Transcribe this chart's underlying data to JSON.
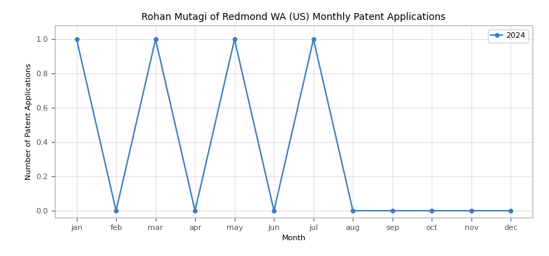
{
  "title": "Rohan Mutagi of Redmond WA (US) Monthly Patent Applications",
  "xlabel": "Month",
  "ylabel": "Number of Patent Applications",
  "months": [
    "jan",
    "feb",
    "mar",
    "apr",
    "may",
    "jun",
    "jul",
    "aug",
    "sep",
    "oct",
    "nov",
    "dec"
  ],
  "values_2024": [
    1,
    0,
    1,
    0,
    1,
    0,
    1,
    0,
    0,
    0,
    0,
    0
  ],
  "line_color": "#3a7ebf",
  "marker": "o",
  "markersize": 4,
  "linewidth": 1.5,
  "legend_label": "2024",
  "ylim": [
    -0.04,
    1.08
  ],
  "yticks": [
    0.0,
    0.2,
    0.4,
    0.6,
    0.8,
    1.0
  ],
  "grid": true,
  "background_color": "#ffffff",
  "title_fontsize": 10,
  "label_fontsize": 8,
  "tick_fontsize": 8,
  "legend_fontsize": 8
}
